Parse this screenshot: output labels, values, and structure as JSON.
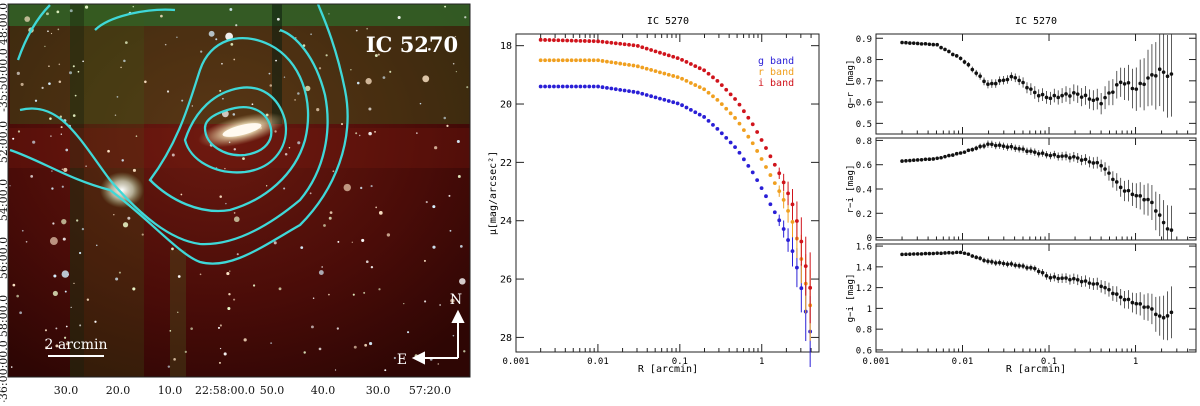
{
  "image_panel": {
    "galaxy_label": "IC 5270",
    "scale_bar_label": "2 arcmin",
    "north_label": "N",
    "east_label": "E",
    "ra_ticks": [
      "30.0",
      "20.0",
      "10.0",
      "22:58:00.0",
      "50.0",
      "40.0",
      "30.0",
      "57:20.0"
    ],
    "dec_ticks": [
      "-35:50:00.0",
      "48:00.0",
      "52:00.0",
      "54:00.0",
      "56:00.0",
      "58:00.0",
      "-36:00:00.0"
    ]
  },
  "chart_data": [
    {
      "type": "scatter",
      "title": "IC 5270",
      "xlabel": "R [arcmin]",
      "ylabel": "μ[mag/arcsec²]",
      "xscale": "log",
      "xlim": [
        0.001,
        5
      ],
      "ylim": [
        28.5,
        17.6
      ],
      "x_ticks": [
        "0.001",
        "0.01",
        "0.1",
        "1"
      ],
      "y_ticks": [
        "18",
        "20",
        "22",
        "24",
        "26",
        "28"
      ],
      "legend": [
        "g band",
        "r band",
        "i band"
      ],
      "series": [
        {
          "name": "g band",
          "color": "#2a1fd6",
          "x": [
            0.002,
            0.01,
            0.03,
            0.1,
            0.2,
            0.3,
            0.5,
            0.8,
            1.2,
            1.8,
            2.5,
            3.2,
            3.8
          ],
          "y": [
            19.4,
            19.4,
            19.6,
            20.0,
            20.45,
            20.9,
            21.55,
            22.4,
            23.3,
            24.2,
            25.2,
            26.6,
            27.8
          ]
        },
        {
          "name": "r band",
          "color": "#f0a020",
          "x": [
            0.002,
            0.01,
            0.03,
            0.1,
            0.2,
            0.3,
            0.5,
            0.8,
            1.2,
            1.8,
            2.5,
            3.2,
            3.8
          ],
          "y": [
            18.5,
            18.5,
            18.7,
            19.1,
            19.5,
            19.9,
            20.55,
            21.4,
            22.3,
            23.2,
            24.2,
            25.6,
            26.9
          ]
        },
        {
          "name": "i band",
          "color": "#d0141c",
          "x": [
            0.002,
            0.01,
            0.03,
            0.1,
            0.2,
            0.3,
            0.5,
            0.8,
            1.2,
            1.8,
            2.5,
            3.2,
            3.8
          ],
          "y": [
            17.8,
            17.85,
            18.0,
            18.45,
            18.85,
            19.25,
            19.9,
            20.75,
            21.65,
            22.6,
            23.6,
            25.0,
            26.3
          ]
        }
      ]
    },
    {
      "type": "scatter",
      "title": "IC 5270",
      "xlabel": "R [arcmin]",
      "xscale": "log",
      "xlim": [
        0.001,
        5
      ],
      "x_ticks": [
        "0.001",
        "0.01",
        "0.1",
        "1"
      ],
      "panels": [
        {
          "ylabel": "g−r [mag]",
          "ylim": [
            0.45,
            0.92
          ],
          "y_ticks": [
            "0.5",
            "0.6",
            "0.7",
            "0.8",
            "0.9"
          ],
          "x": [
            0.002,
            0.005,
            0.01,
            0.02,
            0.04,
            0.07,
            0.1,
            0.2,
            0.4,
            0.7,
            1.0,
            1.5,
            2.0,
            2.5
          ],
          "y": [
            0.88,
            0.87,
            0.8,
            0.68,
            0.72,
            0.64,
            0.62,
            0.64,
            0.6,
            0.7,
            0.66,
            0.72,
            0.75,
            0.72
          ],
          "err": [
            0.005,
            0.005,
            0.01,
            0.02,
            0.02,
            0.03,
            0.03,
            0.04,
            0.05,
            0.07,
            0.1,
            0.14,
            0.18,
            0.2
          ]
        },
        {
          "ylabel": "r−i [mag]",
          "ylim": [
            -0.02,
            0.82
          ],
          "y_ticks": [
            "0",
            "0.2",
            "0.4",
            "0.6",
            "0.8"
          ],
          "x": [
            0.002,
            0.005,
            0.01,
            0.02,
            0.04,
            0.07,
            0.1,
            0.2,
            0.4,
            0.7,
            1.0,
            1.5,
            2.0,
            2.5
          ],
          "y": [
            0.63,
            0.65,
            0.7,
            0.77,
            0.74,
            0.7,
            0.68,
            0.66,
            0.6,
            0.4,
            0.35,
            0.3,
            0.15,
            0.05
          ],
          "err": [
            0.005,
            0.005,
            0.01,
            0.03,
            0.03,
            0.03,
            0.03,
            0.04,
            0.05,
            0.08,
            0.1,
            0.14,
            0.18,
            0.2
          ]
        },
        {
          "ylabel": "g−i [mag]",
          "ylim": [
            0.58,
            1.62
          ],
          "y_ticks": [
            "0.6",
            "0.8",
            "1",
            "1.2",
            "1.4",
            "1.6"
          ],
          "x": [
            0.002,
            0.005,
            0.01,
            0.02,
            0.04,
            0.07,
            0.1,
            0.2,
            0.4,
            0.7,
            1.0,
            1.5,
            2.0,
            2.5
          ],
          "y": [
            1.52,
            1.53,
            1.54,
            1.45,
            1.42,
            1.38,
            1.3,
            1.28,
            1.22,
            1.1,
            1.05,
            1.0,
            0.9,
            0.95
          ],
          "err": [
            0.005,
            0.005,
            0.01,
            0.03,
            0.03,
            0.03,
            0.04,
            0.05,
            0.06,
            0.08,
            0.1,
            0.14,
            0.2,
            0.25
          ]
        }
      ]
    }
  ]
}
